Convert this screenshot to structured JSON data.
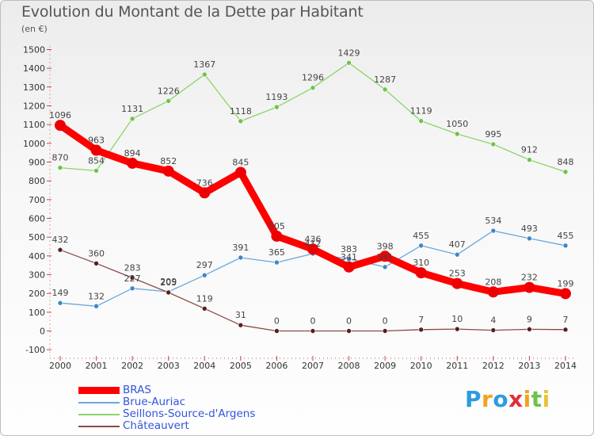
{
  "title": "Evolution du Montant de la Dette par Habitant",
  "subtitle": "(en €)",
  "logo": {
    "chars": [
      "P",
      "r",
      "o",
      "x",
      "i",
      "t",
      "i"
    ],
    "colors": [
      "#2d9be0",
      "#f2a21c",
      "#2d9be0",
      "#e0303a",
      "#f2a21c",
      "#6cc24a",
      "#e8c33a"
    ]
  },
  "chart_data": {
    "type": "line",
    "x": [
      "2000",
      "2001",
      "2002",
      "2003",
      "2004",
      "2005",
      "2006",
      "2007",
      "2008",
      "2009",
      "2010",
      "2011",
      "2012",
      "2013",
      "2014"
    ],
    "yticks": [
      "-100",
      "0",
      "100",
      "200",
      "300",
      "400",
      "500",
      "600",
      "700",
      "800",
      "900",
      "1000",
      "1100",
      "1200",
      "1300",
      "1400",
      "1500"
    ],
    "ylim": [
      -100,
      1500
    ],
    "grid": false,
    "legend_position": "bottom-left",
    "series": [
      {
        "name": "Seillons-Source-d'Argens",
        "color": "#8ed46a",
        "marker": "#6fc24a",
        "values": [
          870,
          854,
          1131,
          1226,
          1367,
          1118,
          1193,
          1296,
          1429,
          1287,
          1119,
          1050,
          995,
          912,
          848
        ],
        "labels": [
          "870",
          "854",
          "1131",
          "1226",
          "1367",
          "1118",
          "1193",
          "1296",
          "1429",
          "1287",
          "1119",
          "1050",
          "995",
          "912",
          "848"
        ]
      },
      {
        "name": "Brue-Auriac",
        "color": "#6aa8dc",
        "marker": "#3d86c8",
        "values": [
          149,
          132,
          227,
          209,
          297,
          391,
          365,
          412,
          383,
          341,
          455,
          407,
          534,
          493,
          455
        ],
        "labels": [
          "149",
          "132",
          "227",
          "209",
          "297",
          "391",
          "365",
          "412",
          "383",
          "341",
          "455",
          "407",
          "534",
          "493",
          "455"
        ]
      },
      {
        "name": "Châteauvert",
        "color": "#8a4a4a",
        "marker": "#5a1e1e",
        "values": [
          432,
          360,
          283,
          205,
          119,
          31,
          0,
          0,
          0,
          0,
          7,
          10,
          4,
          9,
          7
        ],
        "labels": [
          "432",
          "360",
          "283",
          "205",
          "119",
          "31",
          "0",
          "0",
          "0",
          "0",
          "7",
          "10",
          "4",
          "9",
          "7"
        ]
      },
      {
        "name": "BRAS",
        "color": "#ff0000",
        "marker": "#ee0000",
        "values": [
          1096,
          963,
          894,
          852,
          736,
          845,
          505,
          436,
          341,
          398,
          310,
          253,
          208,
          232,
          199
        ],
        "labels": [
          "1096",
          "963",
          "894",
          "852",
          "736",
          "845",
          "505",
          "436",
          "341",
          "398",
          "310",
          "253",
          "208",
          "232",
          "199"
        ]
      }
    ]
  },
  "legend": [
    {
      "label": "BRAS",
      "color": "#ff0000"
    },
    {
      "label": "Brue-Auriac",
      "color": "#6aa8dc"
    },
    {
      "label": "Seillons-Source-d'Argens",
      "color": "#8ed46a"
    },
    {
      "label": "Châteauvert",
      "color": "#8a4a4a"
    }
  ]
}
